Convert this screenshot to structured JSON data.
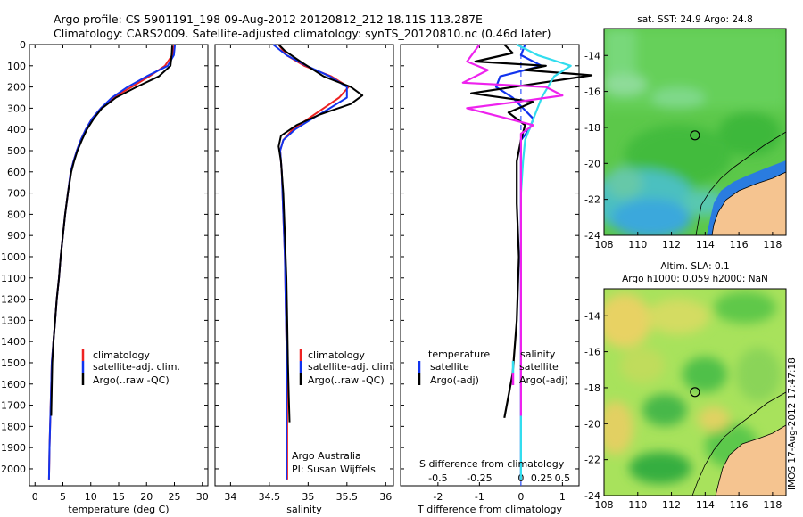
{
  "header": {
    "line1": "Argo profile: CS 5901191_198 09-Aug-2012 20120812_212 18.11S 113.287E",
    "line2": "Climatology: CARS2009. Satellite-adjusted climatology: synTS_20120810.nc (0.46d later)"
  },
  "colors": {
    "climatology": "#ee2222",
    "satellite": "#1133ee",
    "argo": "#000000",
    "sat_salinity": "#33ddee",
    "argo_salinity": "#ee22ee"
  },
  "chart_data": [
    {
      "type": "line",
      "id": "temperature",
      "xlabel": "temperature (deg C)",
      "ylabel": "",
      "xlim": [
        -1,
        31
      ],
      "ylim": [
        2080,
        0
      ],
      "y_reversed": true,
      "xticks": [
        0,
        5,
        10,
        15,
        20,
        25,
        30
      ],
      "yticks": [
        0,
        100,
        200,
        300,
        400,
        500,
        600,
        700,
        800,
        900,
        1000,
        1100,
        1200,
        1300,
        1400,
        1500,
        1600,
        1700,
        1800,
        1900,
        2000
      ],
      "legend": [
        "climatology",
        "satellite-adj. clim.",
        "Argo(..raw -QC)"
      ],
      "legend_position": "lower-right",
      "series": [
        {
          "name": "climatology",
          "color": "#ee2222",
          "x": [
            25.0,
            24.6,
            23.3,
            20.5,
            17.3,
            14.0,
            11.8,
            10.2,
            9.1,
            8.2,
            7.5,
            6.9,
            6.4,
            5.9,
            5.4,
            5.0,
            4.6,
            4.3,
            3.9,
            3.6,
            3.3,
            3.0,
            2.8,
            2.6,
            2.5
          ],
          "y": [
            0,
            50,
            100,
            150,
            200,
            250,
            300,
            350,
            400,
            450,
            500,
            550,
            600,
            700,
            800,
            900,
            1000,
            1100,
            1200,
            1300,
            1400,
            1500,
            1700,
            1900,
            2050
          ]
        },
        {
          "name": "satellite-adj. clim.",
          "color": "#1133ee",
          "x": [
            25.1,
            24.9,
            23.8,
            20.0,
            16.6,
            13.8,
            11.8,
            10.2,
            9.1,
            8.2,
            7.5,
            6.9,
            6.4,
            5.9,
            5.4,
            5.0,
            4.6,
            4.3,
            3.9,
            3.6,
            3.3,
            3.0,
            2.8,
            2.6,
            2.5
          ],
          "y": [
            0,
            50,
            100,
            150,
            200,
            250,
            300,
            350,
            400,
            450,
            500,
            550,
            600,
            700,
            800,
            900,
            1000,
            1100,
            1200,
            1300,
            1400,
            1500,
            1700,
            1900,
            2050
          ]
        },
        {
          "name": "Argo(..raw -QC)",
          "color": "#000000",
          "x": [
            24.6,
            24.5,
            24.3,
            22.2,
            18.2,
            14.5,
            12.0,
            10.5,
            9.3,
            8.4,
            7.6,
            7.0,
            6.5,
            5.9,
            5.4,
            5.0,
            4.6,
            4.3,
            3.9,
            3.6,
            3.3,
            3.1,
            2.9
          ],
          "y": [
            5,
            50,
            100,
            150,
            200,
            250,
            300,
            350,
            400,
            450,
            500,
            550,
            600,
            700,
            800,
            900,
            1000,
            1100,
            1200,
            1300,
            1400,
            1500,
            1750
          ]
        }
      ]
    },
    {
      "type": "line",
      "id": "salinity",
      "xlabel": "salinity",
      "ylabel": "",
      "xlim": [
        33.8,
        36.1
      ],
      "ylim": [
        2080,
        0
      ],
      "y_reversed": true,
      "xticks": [
        34,
        34.5,
        35,
        35.5,
        36
      ],
      "legend": [
        "climatology",
        "satellite-adj. clim.",
        "Argo(..raw -QC)"
      ],
      "legend_position": "lower-right",
      "annotation": [
        "Argo Australia",
        "PI: Susan Wijffels"
      ],
      "series": [
        {
          "name": "climatology",
          "color": "#ee2222",
          "x": [
            34.62,
            34.72,
            34.95,
            35.3,
            35.52,
            35.4,
            35.2,
            35.0,
            34.8,
            34.68,
            34.64,
            34.66,
            34.68,
            34.7,
            34.71,
            34.72,
            34.73,
            34.73,
            34.73
          ],
          "y": [
            0,
            50,
            100,
            150,
            200,
            250,
            300,
            350,
            400,
            450,
            500,
            600,
            800,
            1000,
            1200,
            1400,
            1600,
            1800,
            2050
          ]
        },
        {
          "name": "satellite-adj. clim.",
          "color": "#1133ee",
          "x": [
            34.55,
            34.72,
            34.98,
            35.28,
            35.5,
            35.5,
            35.28,
            35.05,
            34.83,
            34.68,
            34.64,
            34.66,
            34.68,
            34.7,
            34.71,
            34.72,
            34.72,
            34.72,
            34.72
          ],
          "y": [
            0,
            50,
            100,
            150,
            200,
            250,
            300,
            350,
            400,
            450,
            500,
            600,
            800,
            1000,
            1200,
            1400,
            1600,
            1800,
            2050
          ]
        },
        {
          "name": "Argo(..raw -QC)",
          "color": "#000000",
          "x": [
            34.62,
            34.7,
            34.9,
            35.2,
            35.55,
            35.7,
            35.55,
            35.15,
            34.85,
            34.65,
            34.62,
            34.65,
            34.68,
            34.7,
            34.72,
            34.73,
            34.74,
            34.75,
            34.76
          ],
          "y": [
            0,
            30,
            80,
            150,
            200,
            240,
            280,
            330,
            380,
            430,
            480,
            550,
            700,
            900,
            1100,
            1300,
            1500,
            1650,
            1780
          ]
        }
      ]
    },
    {
      "type": "line",
      "id": "difference",
      "xlabel": "T difference from climatology",
      "xlabel_top": "S difference from climatology",
      "xlim": [
        -2.9,
        1.4
      ],
      "ylim": [
        2080,
        0
      ],
      "y_reversed": true,
      "xticks": [
        -2,
        -1,
        0,
        1
      ],
      "xtick_labels": [
        "-2",
        "-1",
        "0",
        "1"
      ],
      "top_xticks": [
        -2,
        -1,
        0,
        0.5,
        1
      ],
      "top_xtick_labels": [
        "-0.5",
        "-0.25",
        "0",
        "0.25",
        "0.5"
      ],
      "legend_groups": [
        {
          "title": "temperature",
          "entries": [
            "satellite",
            "Argo(-adj)"
          ]
        },
        {
          "title": "salinity",
          "entries": [
            "satellite",
            "Argo(-adj)"
          ]
        }
      ],
      "series": [
        {
          "name": "temperature satellite",
          "color": "#1133ee",
          "x": [
            0.1,
            0.0,
            0.5,
            -0.5,
            -0.6,
            -0.2,
            0.05,
            0.3,
            0.2,
            0.0,
            0.0,
            0.0,
            0.0,
            0.0,
            0.0,
            0.0
          ],
          "y": [
            0,
            50,
            100,
            150,
            200,
            250,
            300,
            350,
            400,
            450,
            500,
            600,
            800,
            1200,
            1600,
            2050
          ]
        },
        {
          "name": "temperature Argo(-adj)",
          "color": "#000000",
          "x": [
            -0.4,
            -0.2,
            -1.1,
            0.6,
            0.1,
            1.7,
            0.5,
            -1.2,
            0.3,
            -0.3,
            0.1,
            0.0,
            -0.1,
            -0.1,
            -0.05,
            -0.1,
            -0.2,
            -0.4
          ],
          "y": [
            0,
            40,
            80,
            100,
            120,
            145,
            180,
            230,
            270,
            320,
            380,
            450,
            550,
            750,
            1000,
            1300,
            1550,
            1760
          ]
        },
        {
          "name": "salinity satellite",
          "color": "#33ddee",
          "x": [
            -0.1,
            0.4,
            1.2,
            0.8,
            0.5,
            0.3,
            0.1,
            0.05,
            0.0,
            0.0,
            0.0,
            0.0
          ],
          "y": [
            0,
            50,
            100,
            150,
            250,
            350,
            450,
            550,
            700,
            1000,
            1500,
            2050
          ]
        },
        {
          "name": "salinity Argo(-adj)",
          "color": "#ee22ee",
          "x": [
            -1.0,
            -1.3,
            -0.8,
            -1.4,
            0.6,
            1.0,
            -0.1,
            -1.3,
            -0.5,
            0.3,
            0.0,
            0.0,
            0.0,
            0.0,
            0.0,
            0.0
          ],
          "y": [
            0,
            80,
            120,
            180,
            200,
            240,
            270,
            300,
            340,
            380,
            420,
            500,
            700,
            1000,
            1400,
            1750
          ]
        }
      ]
    },
    {
      "type": "heatmap",
      "id": "sst_map",
      "title": "sat. SST: 24.9 Argo: 24.8",
      "xlim": [
        108,
        118.8
      ],
      "ylim": [
        -24,
        -12.5
      ],
      "xticks": [
        108,
        110,
        112,
        114,
        116,
        118
      ],
      "yticks": [
        -24,
        -22,
        -20,
        -18,
        -16,
        -14
      ],
      "argo_position": {
        "lon": 113.287,
        "lat": -18.11
      }
    },
    {
      "type": "heatmap",
      "id": "sla_map",
      "title": [
        "Altim. SLA: 0.1",
        "Argo h1000: 0.059 h2000: NaN"
      ],
      "xlim": [
        108,
        118.8
      ],
      "ylim": [
        -24,
        -12.5
      ],
      "xticks": [
        108,
        110,
        112,
        114,
        116,
        118
      ],
      "yticks": [
        -24,
        -22,
        -20,
        -18,
        -16,
        -14
      ],
      "argo_position": {
        "lon": 113.287,
        "lat": -18.11
      }
    }
  ],
  "watermark": "IMOS 17-Aug-2012 17:47:18"
}
